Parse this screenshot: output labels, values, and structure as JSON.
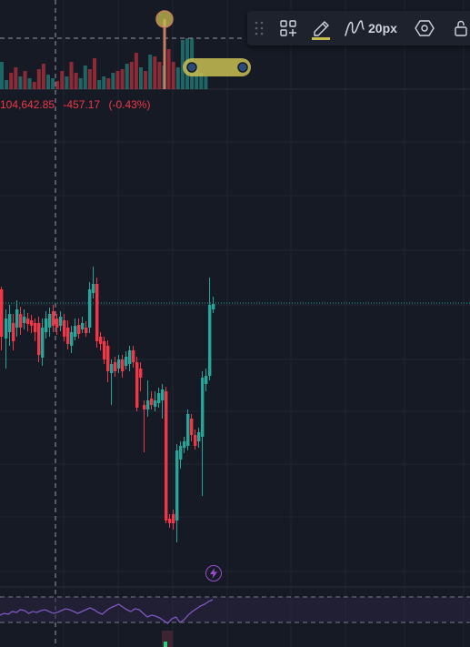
{
  "ohlc": {
    "close": "104,642.85",
    "change": "-457.17",
    "change_pct": "(-0.43%)"
  },
  "toolbar": {
    "line_width_label": "20px",
    "active_color": "#c8bf52"
  },
  "colors": {
    "background": "#161a25",
    "up": "#26a69a",
    "down": "#f23645",
    "rsi": "#7e57c2",
    "rsi_band": "#2a2540"
  },
  "icons": [
    "drag-handle-icon",
    "templates-icon",
    "pencil-icon",
    "line-tool-icon",
    "settings-hexagon-icon",
    "lock-icon",
    "flash-icon"
  ]
}
